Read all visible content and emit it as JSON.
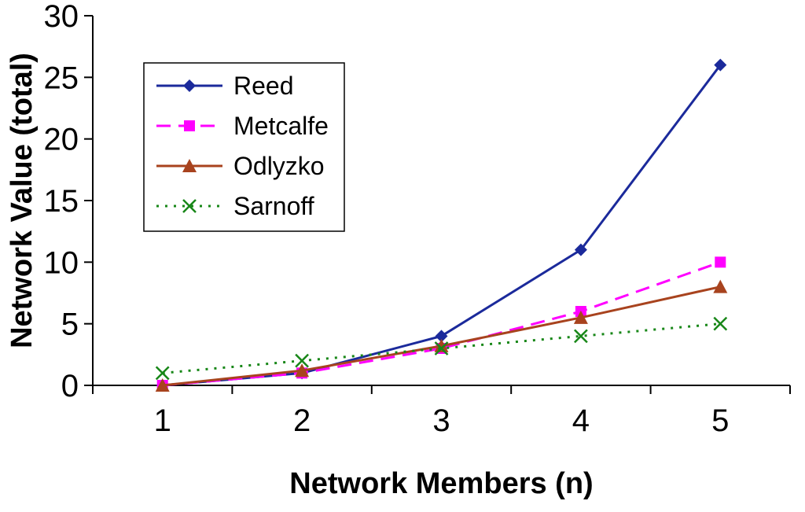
{
  "chart_data": {
    "type": "line",
    "title": "",
    "xlabel": "Network Members (n)",
    "ylabel": "Network Value (total)",
    "x": [
      1,
      2,
      3,
      4,
      5
    ],
    "ylim": [
      0,
      30
    ],
    "yticks": [
      0,
      5,
      10,
      15,
      20,
      25,
      30
    ],
    "grid": false,
    "legend_position": "top-left",
    "background_color": "#ffffff",
    "axis_color": "#000000",
    "series": [
      {
        "name": "Reed",
        "values": [
          0,
          1,
          4,
          11,
          26
        ],
        "color": "#1b2a9b",
        "marker": "diamond",
        "line_style": "solid"
      },
      {
        "name": "Metcalfe",
        "values": [
          0,
          1,
          3,
          6,
          10
        ],
        "color": "#ff00ff",
        "marker": "square",
        "line_style": "dashed"
      },
      {
        "name": "Odlyzko",
        "values": [
          0,
          1.2,
          3.2,
          5.5,
          8
        ],
        "color": "#a8431e",
        "marker": "triangle",
        "line_style": "solid"
      },
      {
        "name": "Sarnoff",
        "values": [
          1,
          2,
          3,
          4,
          5
        ],
        "color": "#188718",
        "marker": "x",
        "line_style": "dotted"
      }
    ]
  }
}
